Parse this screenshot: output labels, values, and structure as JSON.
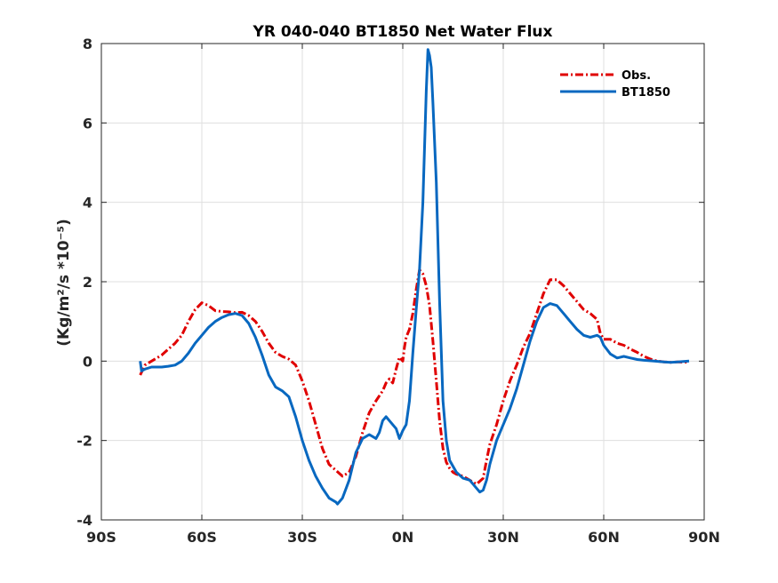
{
  "chart_data": {
    "type": "line",
    "title": "YR 040-040 BT1850  Net Water Flux",
    "xlabel": "",
    "ylabel": "(Kg/m²/s *10⁻⁵)",
    "xlim": [
      -90,
      90
    ],
    "ylim": [
      -4,
      8
    ],
    "x_ticks": [
      -90,
      -60,
      -30,
      0,
      30,
      60,
      90
    ],
    "x_tick_labels": [
      "90S",
      "60S",
      "30S",
      "0N",
      "30N",
      "60N",
      "90N"
    ],
    "y_ticks": [
      -4,
      -2,
      0,
      2,
      4,
      6,
      8
    ],
    "y_tick_labels": [
      "-4",
      "-2",
      "0",
      "2",
      "4",
      "6",
      "8"
    ],
    "grid": true,
    "legend_position": "top-right",
    "series": [
      {
        "name": "Obs.",
        "color": "#e00000",
        "dash": "dash-dot",
        "points": [
          [
            -78.4,
            -0.35
          ],
          [
            -77,
            -0.1
          ],
          [
            -75,
            0.0
          ],
          [
            -72,
            0.15
          ],
          [
            -70,
            0.3
          ],
          [
            -68,
            0.45
          ],
          [
            -66,
            0.65
          ],
          [
            -64,
            1.0
          ],
          [
            -62,
            1.3
          ],
          [
            -60,
            1.47
          ],
          [
            -58,
            1.4
          ],
          [
            -56,
            1.27
          ],
          [
            -54,
            1.25
          ],
          [
            -52,
            1.24
          ],
          [
            -50,
            1.22
          ],
          [
            -48,
            1.23
          ],
          [
            -46,
            1.15
          ],
          [
            -44,
            1.0
          ],
          [
            -42,
            0.75
          ],
          [
            -40,
            0.45
          ],
          [
            -38,
            0.22
          ],
          [
            -36,
            0.12
          ],
          [
            -34,
            0.05
          ],
          [
            -32,
            -0.1
          ],
          [
            -30,
            -0.5
          ],
          [
            -28,
            -1.0
          ],
          [
            -26,
            -1.6
          ],
          [
            -24,
            -2.2
          ],
          [
            -22,
            -2.6
          ],
          [
            -20,
            -2.75
          ],
          [
            -18,
            -2.9
          ],
          [
            -16,
            -2.8
          ],
          [
            -14,
            -2.4
          ],
          [
            -12,
            -1.8
          ],
          [
            -10,
            -1.3
          ],
          [
            -8,
            -1.0
          ],
          [
            -6,
            -0.75
          ],
          [
            -5,
            -0.55
          ],
          [
            -4,
            -0.45
          ],
          [
            -3,
            -0.55
          ],
          [
            -2,
            -0.2
          ],
          [
            -1,
            0.1
          ],
          [
            0,
            0.0
          ],
          [
            0.5,
            0.35
          ],
          [
            1,
            0.6
          ],
          [
            2,
            0.8
          ],
          [
            3,
            1.2
          ],
          [
            4,
            1.8
          ],
          [
            5,
            2.3
          ],
          [
            6,
            2.2
          ],
          [
            7,
            1.9
          ],
          [
            8,
            1.4
          ],
          [
            9,
            0.5
          ],
          [
            10,
            -0.5
          ],
          [
            11,
            -1.5
          ],
          [
            12,
            -2.2
          ],
          [
            13,
            -2.55
          ],
          [
            14,
            -2.7
          ],
          [
            15,
            -2.8
          ],
          [
            16,
            -2.85
          ],
          [
            18,
            -2.9
          ],
          [
            20,
            -3.0
          ],
          [
            22,
            -3.1
          ],
          [
            24,
            -2.95
          ],
          [
            25,
            -2.5
          ],
          [
            26,
            -2.1
          ],
          [
            28,
            -1.6
          ],
          [
            30,
            -1.0
          ],
          [
            32,
            -0.5
          ],
          [
            34,
            -0.1
          ],
          [
            36,
            0.35
          ],
          [
            38,
            0.7
          ],
          [
            40,
            1.2
          ],
          [
            42,
            1.7
          ],
          [
            44,
            2.05
          ],
          [
            46,
            2.05
          ],
          [
            48,
            1.9
          ],
          [
            50,
            1.7
          ],
          [
            52,
            1.5
          ],
          [
            54,
            1.3
          ],
          [
            56,
            1.2
          ],
          [
            58,
            1.05
          ],
          [
            59,
            0.7
          ],
          [
            60,
            0.55
          ],
          [
            62,
            0.55
          ],
          [
            64,
            0.45
          ],
          [
            66,
            0.4
          ],
          [
            68,
            0.3
          ],
          [
            70,
            0.22
          ],
          [
            72,
            0.12
          ],
          [
            74,
            0.05
          ],
          [
            76,
            0.0
          ],
          [
            78,
            -0.02
          ],
          [
            80,
            -0.03
          ],
          [
            82,
            -0.02
          ],
          [
            84,
            -0.03
          ],
          [
            85.5,
            -0.02
          ]
        ]
      },
      {
        "name": "BT1850",
        "color": "#0868c0",
        "dash": "solid",
        "points": [
          [
            -78.4,
            0.0
          ],
          [
            -78,
            -0.25
          ],
          [
            -77,
            -0.2
          ],
          [
            -75,
            -0.15
          ],
          [
            -72,
            -0.15
          ],
          [
            -70,
            -0.13
          ],
          [
            -68,
            -0.1
          ],
          [
            -66,
            0.0
          ],
          [
            -64,
            0.2
          ],
          [
            -62,
            0.45
          ],
          [
            -60,
            0.65
          ],
          [
            -58,
            0.85
          ],
          [
            -56,
            1.0
          ],
          [
            -54,
            1.1
          ],
          [
            -52,
            1.17
          ],
          [
            -50,
            1.2
          ],
          [
            -48,
            1.15
          ],
          [
            -46,
            0.95
          ],
          [
            -44,
            0.6
          ],
          [
            -42,
            0.15
          ],
          [
            -40,
            -0.35
          ],
          [
            -38,
            -0.65
          ],
          [
            -36,
            -0.75
          ],
          [
            -34,
            -0.9
          ],
          [
            -32,
            -1.4
          ],
          [
            -30,
            -2.0
          ],
          [
            -28,
            -2.5
          ],
          [
            -26,
            -2.9
          ],
          [
            -24,
            -3.2
          ],
          [
            -22,
            -3.45
          ],
          [
            -20,
            -3.55
          ],
          [
            -19.5,
            -3.6
          ],
          [
            -18,
            -3.45
          ],
          [
            -16,
            -3.0
          ],
          [
            -14,
            -2.3
          ],
          [
            -12,
            -1.95
          ],
          [
            -10,
            -1.85
          ],
          [
            -8,
            -1.95
          ],
          [
            -7,
            -1.8
          ],
          [
            -6,
            -1.5
          ],
          [
            -5,
            -1.4
          ],
          [
            -4,
            -1.5
          ],
          [
            -3,
            -1.6
          ],
          [
            -2,
            -1.7
          ],
          [
            -1,
            -1.95
          ],
          [
            0,
            -1.75
          ],
          [
            1,
            -1.6
          ],
          [
            2,
            -1.0
          ],
          [
            3,
            0.2
          ],
          [
            4,
            1.3
          ],
          [
            5,
            2.3
          ],
          [
            6,
            4.0
          ],
          [
            7,
            6.8
          ],
          [
            7.5,
            7.85
          ],
          [
            8,
            7.7
          ],
          [
            8.5,
            7.4
          ],
          [
            9,
            6.5
          ],
          [
            10,
            4.5
          ],
          [
            11,
            1.5
          ],
          [
            12,
            -1.0
          ],
          [
            13,
            -2.0
          ],
          [
            14,
            -2.5
          ],
          [
            16,
            -2.8
          ],
          [
            18,
            -2.95
          ],
          [
            20,
            -3.0
          ],
          [
            22,
            -3.2
          ],
          [
            23,
            -3.3
          ],
          [
            24,
            -3.25
          ],
          [
            25,
            -3.0
          ],
          [
            26,
            -2.6
          ],
          [
            28,
            -2.0
          ],
          [
            30,
            -1.6
          ],
          [
            32,
            -1.2
          ],
          [
            34,
            -0.7
          ],
          [
            36,
            -0.1
          ],
          [
            38,
            0.5
          ],
          [
            40,
            1.0
          ],
          [
            42,
            1.35
          ],
          [
            44,
            1.45
          ],
          [
            46,
            1.4
          ],
          [
            48,
            1.2
          ],
          [
            50,
            1.0
          ],
          [
            52,
            0.8
          ],
          [
            54,
            0.65
          ],
          [
            56,
            0.6
          ],
          [
            58,
            0.65
          ],
          [
            59,
            0.6
          ],
          [
            60,
            0.4
          ],
          [
            62,
            0.18
          ],
          [
            64,
            0.08
          ],
          [
            66,
            0.12
          ],
          [
            68,
            0.08
          ],
          [
            70,
            0.04
          ],
          [
            72,
            0.02
          ],
          [
            75,
            0.0
          ],
          [
            78,
            -0.02
          ],
          [
            80,
            -0.03
          ],
          [
            82,
            -0.02
          ],
          [
            85.5,
            0.0
          ]
        ]
      }
    ]
  }
}
